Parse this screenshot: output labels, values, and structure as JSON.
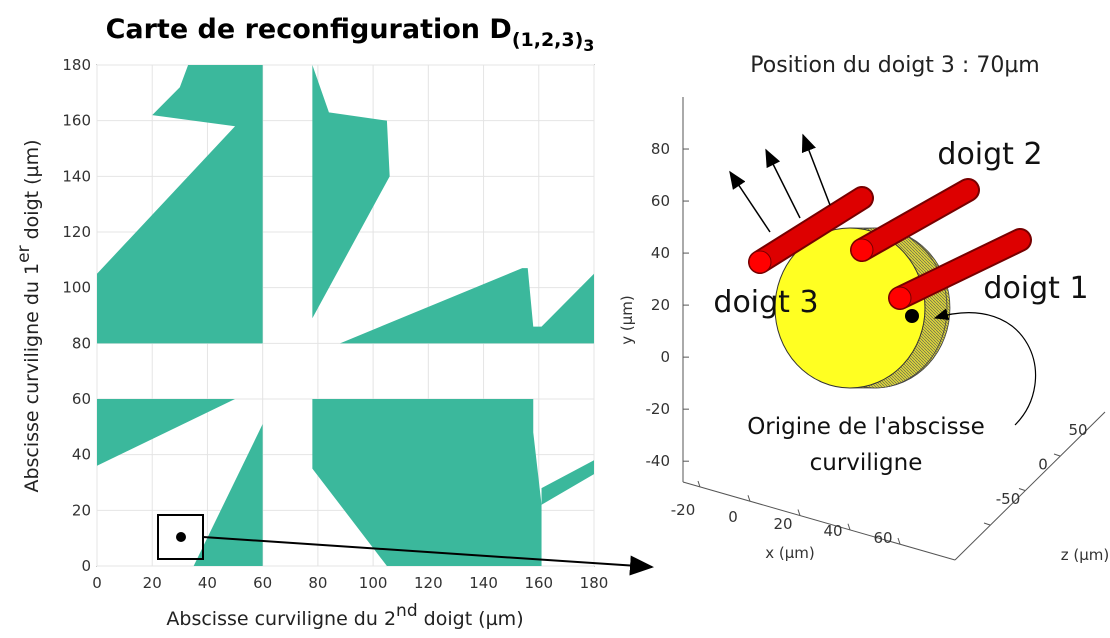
{
  "chart_data": [
    {
      "type": "region",
      "title": "Carte de reconfiguration D",
      "title_subscript": "(1,2,3)",
      "title_subsubscript": "3",
      "xlabel": [
        "Abscisse curviligne du 2",
        "nd",
        " doigt (µm)"
      ],
      "ylabel": [
        "Abscisse curviligne du 1",
        "er",
        " doigt (µm)"
      ],
      "xlim": [
        0,
        180
      ],
      "ylim": [
        0,
        180
      ],
      "xticks": [
        0,
        20,
        40,
        60,
        80,
        100,
        120,
        140,
        160,
        180
      ],
      "yticks": [
        0,
        20,
        40,
        60,
        80,
        100,
        120,
        140,
        160,
        180
      ],
      "grid": true,
      "color": "#3bb89c",
      "regions": [
        {
          "x": [
            0,
            0,
            50,
            20,
            22,
            30,
            33,
            60,
            60
          ],
          "y": [
            80,
            105,
            158,
            162,
            164,
            172,
            180,
            180,
            80
          ]
        },
        {
          "x": [
            78,
            84,
            105,
            106,
            78
          ],
          "y": [
            180,
            163,
            160,
            140,
            89
          ]
        },
        {
          "x": [
            88,
            154,
            156,
            158,
            161,
            180,
            180
          ],
          "y": [
            80,
            107,
            107,
            86,
            86,
            105,
            80
          ]
        },
        {
          "x": [
            0,
            0,
            50
          ],
          "y": [
            36,
            60,
            60
          ]
        },
        {
          "x": [
            35,
            60,
            60
          ],
          "y": [
            0,
            51,
            0
          ]
        },
        {
          "x": [
            78,
            158,
            158,
            161,
            180,
            180,
            161,
            161,
            105,
            78
          ],
          "y": [
            60,
            60,
            48,
            22,
            33,
            38,
            28,
            0,
            0,
            35
          ]
        }
      ]
    },
    {
      "type": "3d",
      "title": "Position du doigt 3 : 70µm",
      "xlabel": "x (µm)",
      "ylabel": "y (µm)",
      "zlabel": "z (µm)",
      "ylim": [
        -48,
        100
      ],
      "yticks": [
        -40,
        -20,
        0,
        20,
        40,
        60,
        80
      ],
      "xticks": [
        -20,
        0,
        20,
        40,
        60
      ],
      "zticks": [
        -50,
        0,
        50
      ],
      "annotations": [
        "doigt 1",
        "doigt 2",
        "doigt 3",
        "Origine de l'abscisse",
        "curviligne"
      ]
    }
  ]
}
